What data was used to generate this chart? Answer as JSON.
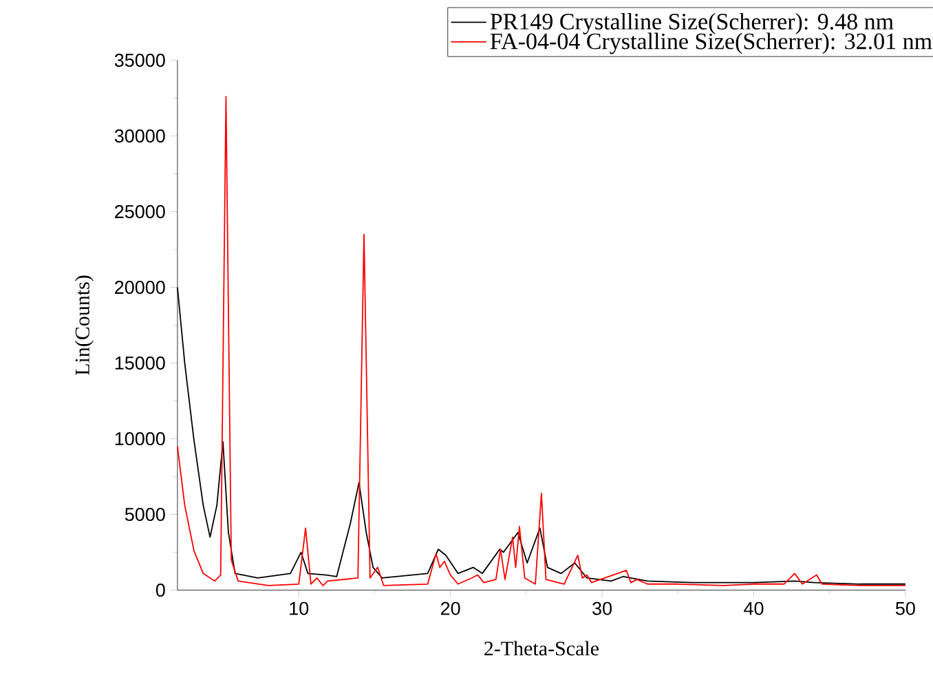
{
  "chart_data": {
    "type": "line",
    "xlabel": "2-Theta-Scale",
    "ylabel": "Lin(Counts)",
    "xlim": [
      2,
      50
    ],
    "ylim": [
      0,
      35000
    ],
    "xticks": [
      10,
      20,
      30,
      40,
      50
    ],
    "yticks": [
      0,
      5000,
      10000,
      15000,
      20000,
      25000,
      30000,
      35000
    ],
    "legend": "top right",
    "grid": false,
    "marker": "none",
    "line_style": "solid",
    "series": [
      {
        "name": "PR149 Crystalline Size(Scherrer): 9.48 nm",
        "color": "#000000",
        "x": [
          2,
          2.48,
          3.09,
          3.7,
          4.15,
          4.6,
          5.0,
          5.36,
          5.8,
          7.3,
          9.45,
          10.15,
          10.6,
          11.8,
          12.5,
          13.4,
          13.97,
          14.45,
          14.9,
          15.5,
          18.5,
          19.2,
          19.7,
          20.5,
          21.5,
          22.1,
          23.25,
          23.5,
          24.45,
          25.06,
          25.9,
          26.4,
          27.3,
          28.2,
          29.0,
          30.6,
          31.4,
          33,
          36,
          40,
          42.7,
          44,
          47,
          50
        ],
        "values": [
          20000,
          15000,
          9900,
          5600,
          3500,
          5600,
          9800,
          3800,
          1100,
          800,
          1100,
          2500,
          1100,
          1000,
          900,
          4400,
          7100,
          3800,
          1500,
          800,
          1100,
          2700,
          2300,
          1100,
          1500,
          1100,
          2700,
          2500,
          3800,
          1800,
          4100,
          1500,
          1100,
          1800,
          800,
          600,
          900,
          600,
          500,
          500,
          600,
          500,
          400,
          400
        ]
      },
      {
        "name": "FA-04-04 Crystalline Size(Scherrer): 32.01 nm",
        "color": "#ff0000",
        "x": [
          2,
          2.48,
          3.09,
          3.7,
          4.45,
          4.85,
          5.2,
          5.55,
          6.0,
          8,
          10.0,
          10.45,
          10.8,
          11.2,
          11.6,
          11.9,
          13.9,
          14.3,
          14.7,
          15.2,
          15.6,
          18.5,
          19.05,
          19.3,
          19.6,
          20.0,
          20.5,
          21.4,
          21.8,
          22.2,
          23.0,
          23.3,
          23.6,
          24.1,
          24.3,
          24.55,
          24.9,
          25.6,
          26.0,
          26.3,
          27.5,
          28.4,
          28.7,
          29.0,
          29.3,
          31.6,
          31.9,
          32.3,
          33,
          35,
          38,
          40,
          42,
          42.7,
          43.2,
          44.15,
          44.5,
          47,
          50
        ],
        "values": [
          9500,
          5600,
          2600,
          1100,
          600,
          1000,
          32600,
          2000,
          600,
          300,
          400,
          4100,
          400,
          800,
          300,
          600,
          800,
          23500,
          800,
          1500,
          300,
          400,
          2400,
          1500,
          1900,
          1000,
          400,
          800,
          1000,
          500,
          700,
          2700,
          700,
          3500,
          1500,
          4200,
          800,
          400,
          6400,
          700,
          400,
          2300,
          800,
          1000,
          500,
          1300,
          500,
          700,
          400,
          400,
          300,
          400,
          400,
          1100,
          400,
          1000,
          400,
          300,
          300
        ]
      }
    ]
  }
}
